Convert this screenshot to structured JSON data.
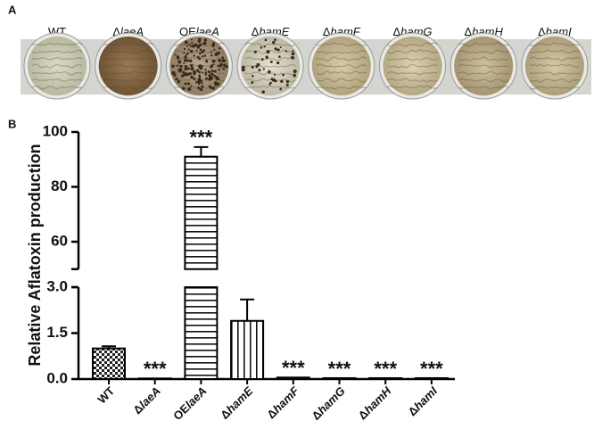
{
  "panel_a": {
    "letter": "A",
    "labels": [
      "WT",
      "ΔlaeA",
      "OElaeA",
      "ΔhamE",
      "ΔhamF",
      "ΔhamG",
      "ΔhamH",
      "ΔhamI"
    ]
  },
  "chart_data": {
    "type": "bar",
    "panel_letter": "B",
    "ylabel": "Relative Aflatoxin production",
    "categories": [
      "WT",
      "ΔlaeA",
      "OElaeA",
      "ΔhamE",
      "ΔhamF",
      "ΔhamG",
      "ΔhamH",
      "ΔhamI"
    ],
    "values": [
      1.0,
      0.02,
      91,
      1.9,
      0.05,
      0.03,
      0.03,
      0.03
    ],
    "errors": [
      0.07,
      null,
      3.5,
      0.7,
      null,
      null,
      null,
      null
    ],
    "significance": [
      null,
      "***",
      "***",
      null,
      "***",
      "***",
      "***",
      "***"
    ],
    "segments": [
      {
        "ylim": [
          0,
          3
        ],
        "yticks": [
          {
            "value": 0,
            "label": "0.0"
          },
          {
            "value": 1.5,
            "label": "1.5"
          },
          {
            "value": 3,
            "label": "3.0"
          }
        ]
      },
      {
        "ylim": [
          50,
          100
        ],
        "yticks": [
          60,
          80,
          100
        ]
      }
    ]
  }
}
